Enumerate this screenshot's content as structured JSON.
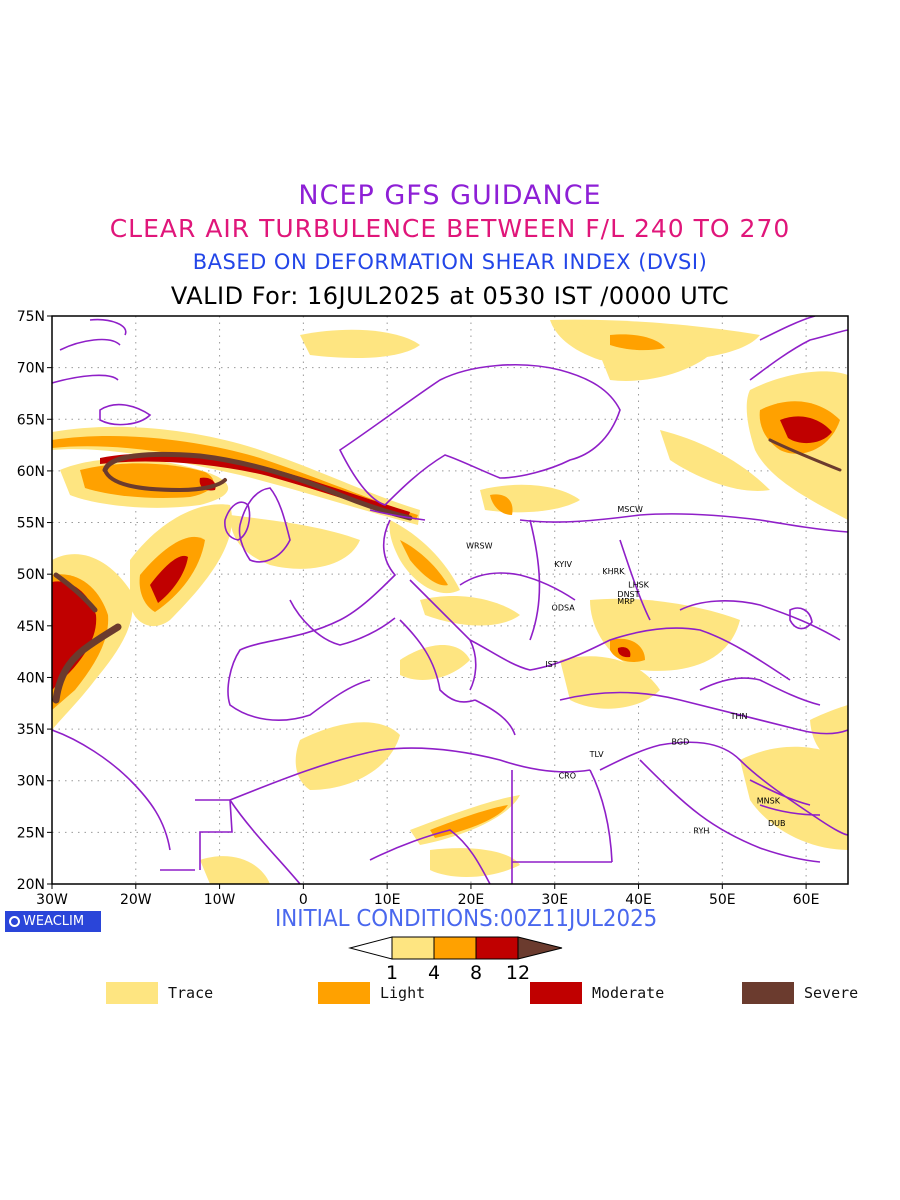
{
  "header": {
    "line1": "NCEP GFS GUIDANCE",
    "line2": "CLEAR AIR TURBULENCE BETWEEN F/L 240 TO 270",
    "line3": "BASED ON DEFORMATION SHEAR INDEX (DVSI)",
    "line4": "VALID For: 16JUL2025 at 0530 IST /0000 UTC"
  },
  "map": {
    "lat_ticks": [
      "75N",
      "70N",
      "65N",
      "60N",
      "55N",
      "50N",
      "45N",
      "40N",
      "35N",
      "30N",
      "25N",
      "20N"
    ],
    "lon_ticks": [
      "30W",
      "20W",
      "10W",
      "0",
      "10E",
      "20E",
      "30E",
      "40E",
      "50E",
      "60E"
    ],
    "extent": {
      "lon_min": -30,
      "lon_max": 65,
      "lat_min": 20,
      "lat_max": 75
    },
    "stations": [
      {
        "code": "MSCW",
        "lon": 39,
        "lat": 56
      },
      {
        "code": "WRSW",
        "lon": 21,
        "lat": 52.5
      },
      {
        "code": "KYIV",
        "lon": 31,
        "lat": 50.7
      },
      {
        "code": "KHRK",
        "lon": 37,
        "lat": 50
      },
      {
        "code": "LHSK",
        "lon": 40,
        "lat": 48.7
      },
      {
        "code": "DNST",
        "lon": 38.8,
        "lat": 47.8
      },
      {
        "code": "MRP",
        "lon": 38.5,
        "lat": 47.1
      },
      {
        "code": "ODSA",
        "lon": 31,
        "lat": 46.5
      },
      {
        "code": "IST",
        "lon": 29.6,
        "lat": 41
      },
      {
        "code": "THN",
        "lon": 52,
        "lat": 36
      },
      {
        "code": "BGD",
        "lon": 45,
        "lat": 33.5
      },
      {
        "code": "TLV",
        "lon": 35,
        "lat": 32.3
      },
      {
        "code": "CRO",
        "lon": 31.5,
        "lat": 30.2
      },
      {
        "code": "MNSK",
        "lon": 55.5,
        "lat": 27.8
      },
      {
        "code": "DUB",
        "lon": 56.5,
        "lat": 25.6
      },
      {
        "code": "RYH",
        "lon": 47.5,
        "lat": 24.9
      }
    ]
  },
  "footer": {
    "badge": "WEACLIM",
    "initial_conditions": "INITIAL CONDITIONS:00Z11JUL2025",
    "colorbar_ticks": [
      "1",
      "4",
      "8",
      "12"
    ]
  },
  "legend": [
    {
      "label": "Trace",
      "color": "#fee581"
    },
    {
      "label": "Light",
      "color": "#ffa100"
    },
    {
      "label": "Moderate",
      "color": "#c00000"
    },
    {
      "label": "Severe",
      "color": "#6b3b2e"
    }
  ],
  "colors": {
    "trace": "#fee581",
    "light": "#ffa100",
    "moderate": "#c00000",
    "severe": "#6b3b2e",
    "borders": "#8f1fc8"
  }
}
